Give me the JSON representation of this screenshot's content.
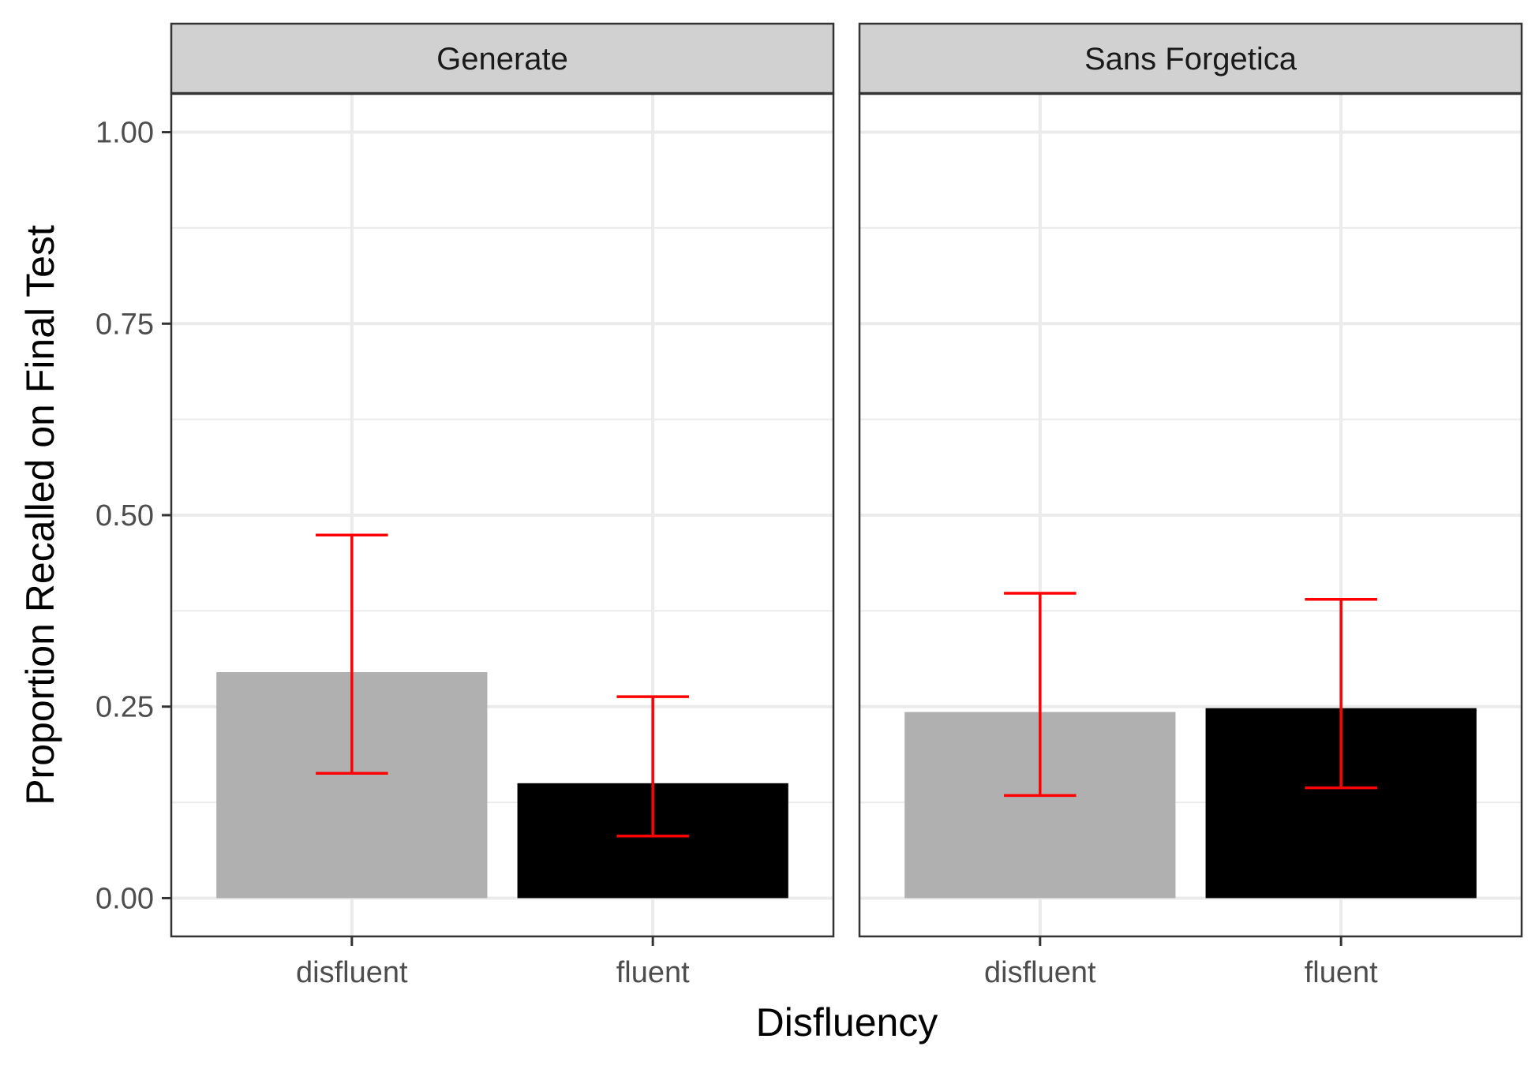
{
  "chart_data": {
    "type": "bar",
    "xlabel": "Disfluency",
    "ylabel": "Proportion Recalled on Final Test",
    "ylim": [
      -0.05,
      1.05
    ],
    "yticks": [
      0.0,
      0.25,
      0.5,
      0.75,
      1.0
    ],
    "ytick_labels": [
      "0.00",
      "0.25",
      "0.50",
      "0.75",
      "1.00"
    ],
    "categories": [
      "disfluent",
      "fluent"
    ],
    "category_colors": [
      "#b0b0b0",
      "#000000"
    ],
    "error_bar_color": "#ff0000",
    "grid": true,
    "legend": "none",
    "panels": [
      {
        "title": "Generate",
        "values": [
          0.295,
          0.15
        ],
        "error_low": [
          0.163,
          0.081
        ],
        "error_high": [
          0.474,
          0.263
        ]
      },
      {
        "title": "Sans Forgetica",
        "values": [
          0.243,
          0.248
        ],
        "error_low": [
          0.134,
          0.144
        ],
        "error_high": [
          0.398,
          0.39
        ]
      }
    ]
  }
}
